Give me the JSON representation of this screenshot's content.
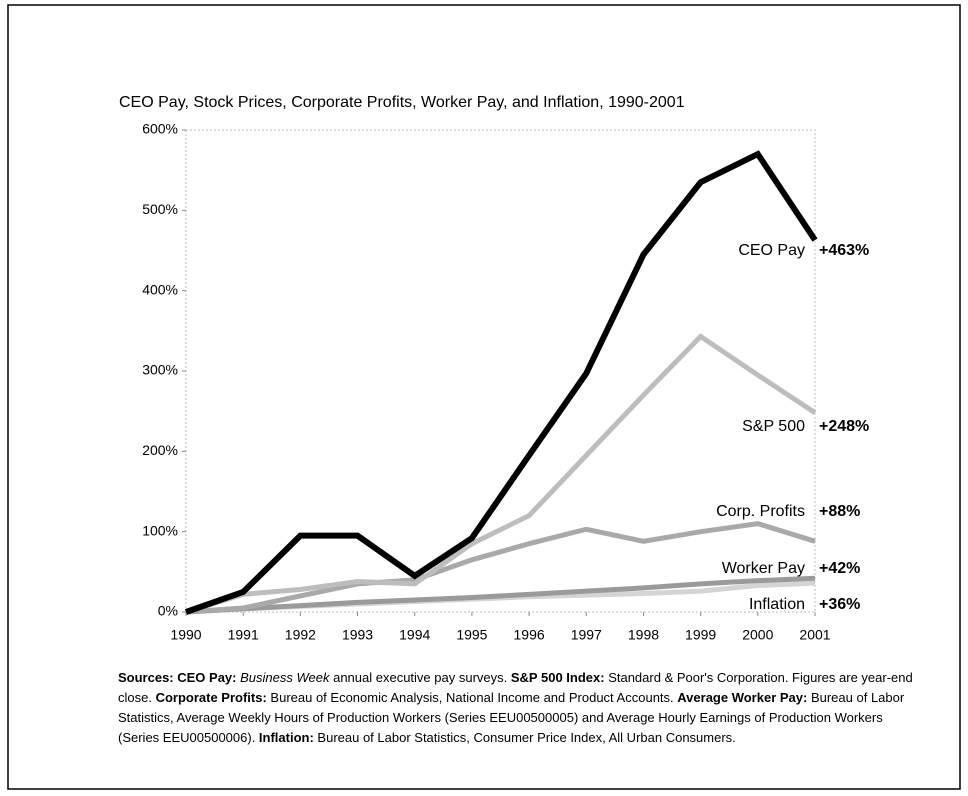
{
  "chart_data": {
    "type": "line",
    "title": "CEO Pay, Stock Prices, Corporate Profits, Worker Pay, and Inflation, 1990-2001",
    "x": [
      1990,
      1991,
      1992,
      1993,
      1994,
      1995,
      1996,
      1997,
      1998,
      1999,
      2000,
      2001
    ],
    "xlim": [
      1990,
      2001
    ],
    "xticks": [
      1990,
      1991,
      1992,
      1993,
      1994,
      1995,
      1996,
      1997,
      1998,
      1999,
      2000,
      2001
    ],
    "ylim": [
      0,
      600
    ],
    "yticks": [
      {
        "value": 0,
        "label": "0%"
      },
      {
        "value": 100,
        "label": "100%"
      },
      {
        "value": 200,
        "label": "200%"
      },
      {
        "value": 300,
        "label": "300%"
      },
      {
        "value": 400,
        "label": "400%"
      },
      {
        "value": 500,
        "label": "500%"
      },
      {
        "value": 600,
        "label": "600%"
      }
    ],
    "grid": false,
    "series": [
      {
        "name": "Inflation",
        "color": "#d4d4d4",
        "end_label": "+36%",
        "values": [
          0,
          4,
          7,
          10,
          13,
          16,
          19,
          21,
          23,
          26,
          33,
          36
        ]
      },
      {
        "name": "Worker Pay",
        "color": "#9a9a9a",
        "end_label": "+42%",
        "values": [
          0,
          4,
          8,
          12,
          15,
          18,
          22,
          26,
          30,
          35,
          39,
          42
        ]
      },
      {
        "name": "Corp. Profits",
        "color": "#a9a9a9",
        "end_label": "+88%",
        "values": [
          0,
          5,
          20,
          35,
          40,
          65,
          85,
          103,
          88,
          100,
          110,
          88
        ]
      },
      {
        "name": "S&P 500",
        "color": "#bdbdbd",
        "end_label": "+248%",
        "values": [
          0,
          22,
          28,
          38,
          35,
          85,
          120,
          195,
          270,
          343,
          295,
          248
        ]
      },
      {
        "name": "CEO Pay",
        "color": "#000000",
        "end_label": "+463%",
        "values": [
          0,
          25,
          95,
          95,
          45,
          92,
          195,
          297,
          445,
          535,
          570,
          463
        ]
      }
    ]
  },
  "notes": [
    {
      "text": "Sources: CEO Pay:",
      "style": "bold"
    },
    {
      "text": " ",
      "style": "normal"
    },
    {
      "text": "Business Week",
      "style": "italic"
    },
    {
      "text": " annual executive pay surveys. ",
      "style": "normal"
    },
    {
      "text": "S&P 500 Index:",
      "style": "bold"
    },
    {
      "text": " Standard & Poor's Corporation. Figures are year-end close. ",
      "style": "normal"
    },
    {
      "text": "Corporate Profits:",
      "style": "bold"
    },
    {
      "text": " Bureau of Economic Analysis, National Income and Product Accounts. ",
      "style": "normal"
    },
    {
      "text": "Average Worker Pay:",
      "style": "bold"
    },
    {
      "text": " Bureau of Labor Statistics, Average Weekly Hours of Production Workers (Series EEU00500005) and Average Hourly Earnings of Production Workers (Series EEU00500006). ",
      "style": "normal"
    },
    {
      "text": "Inflation:",
      "style": "bold"
    },
    {
      "text": " Bureau of Labor Statistics, Consumer Price Index, All Urban Consumers.",
      "style": "normal"
    }
  ]
}
